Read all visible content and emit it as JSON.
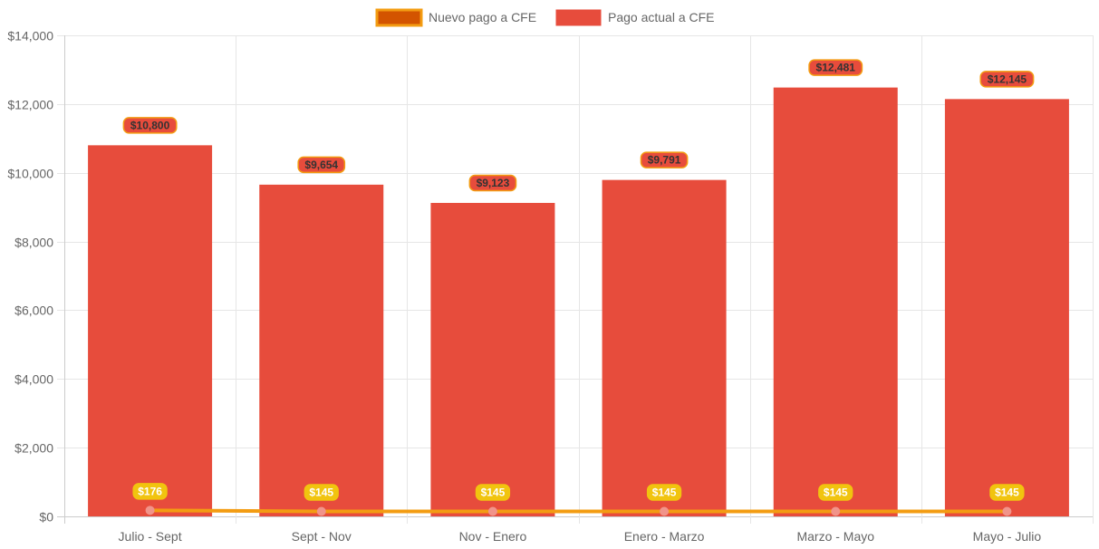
{
  "chart_data": {
    "type": "bar",
    "categories": [
      "Julio - Sept",
      "Sept - Nov",
      "Nov - Enero",
      "Enero - Marzo",
      "Marzo - Mayo",
      "Mayo - Julio"
    ],
    "series": [
      {
        "name": "Nuevo pago a CFE",
        "kind": "line",
        "values": [
          176,
          145,
          145,
          145,
          145,
          145
        ],
        "labels": [
          "$176",
          "$145",
          "$145",
          "$145",
          "$145",
          "$145"
        ],
        "color": "#f39c12",
        "fill_color": "#d35400",
        "point_color": "#f1948a",
        "label_bg": "#f1c40f",
        "label_text_color": "#ffffff"
      },
      {
        "name": "Pago actual a CFE",
        "kind": "bar",
        "values": [
          10800,
          9654,
          9123,
          9791,
          12481,
          12145
        ],
        "labels": [
          "$10,800",
          "$9,654",
          "$9,123",
          "$9,791",
          "$12,481",
          "$12,145"
        ],
        "color": "#e74c3c",
        "label_bg": "#e74c3c",
        "label_border": "#f39c12",
        "label_text_color": "#333333"
      }
    ],
    "ylim": [
      0,
      14000
    ],
    "yticks": [
      0,
      2000,
      4000,
      6000,
      8000,
      10000,
      12000,
      14000
    ],
    "ytick_labels": [
      "$0",
      "$2,000",
      "$4,000",
      "$6,000",
      "$8,000",
      "$10,000",
      "$12,000",
      "$14,000"
    ],
    "legend": {
      "position": "top-center",
      "items": [
        "Nuevo pago a CFE",
        "Pago actual a CFE"
      ]
    },
    "grid": true,
    "title": "",
    "xlabel": "",
    "ylabel": ""
  }
}
